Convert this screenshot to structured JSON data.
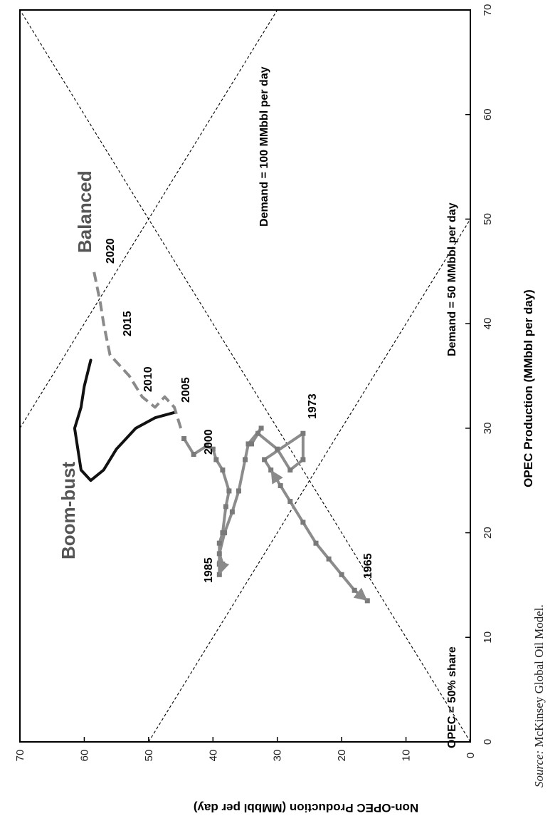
{
  "chart_data": {
    "type": "line",
    "xlabel": "OPEC Production (MMbbl per day)",
    "ylabel": "Non-OPEC Production (MMbbl per day)",
    "xlim": [
      0,
      70
    ],
    "ylim": [
      0,
      70
    ],
    "x_ticks": [
      "0",
      "10",
      "20",
      "30",
      "40",
      "50",
      "60",
      "70"
    ],
    "y_ticks": [
      "0",
      "10",
      "20",
      "30",
      "40",
      "50",
      "60",
      "70"
    ],
    "grid": false,
    "orientation": "rotated 90 degrees counter-clockwise",
    "reference_lines": [
      {
        "label": "OPEC = 50% share",
        "points": [
          [
            0,
            0
          ],
          [
            70,
            70
          ]
        ]
      },
      {
        "label": "Demand = 50 MMbbl per day",
        "points": [
          [
            0,
            50
          ],
          [
            50,
            0
          ]
        ]
      },
      {
        "label": "Demand = 100 MMbbl per day",
        "points": [
          [
            30,
            70
          ],
          [
            70,
            30
          ]
        ]
      }
    ],
    "series": [
      {
        "style": "grey solid with markers",
        "color": "#8c8c8c",
        "x": [
          13.5,
          14.5,
          16,
          17.5,
          19,
          21,
          23,
          24.5,
          26,
          27,
          29.5,
          27,
          26,
          28,
          29.5,
          28.5,
          30,
          28.5,
          27,
          24,
          22,
          20,
          18,
          17,
          16,
          17,
          19,
          20,
          22.5,
          24,
          26,
          27,
          28,
          28.3,
          27.5,
          29
        ],
        "y": [
          16,
          18,
          20,
          22,
          24,
          26,
          28,
          29.5,
          31,
          32,
          26,
          26,
          28,
          30,
          33,
          34,
          32.5,
          34.5,
          35,
          36,
          37,
          38.2,
          39,
          38.5,
          39,
          39,
          39,
          38.5,
          38,
          37.5,
          38.5,
          39.5,
          40,
          41,
          43,
          44.5
        ]
      },
      {
        "style": "black solid (boom-bust)",
        "color": "#111111",
        "x": [
          31.5,
          31,
          30,
          28,
          26,
          25,
          26,
          28,
          30,
          32,
          34,
          36.5
        ],
        "y": [
          46,
          49,
          52,
          55,
          57,
          59,
          60.5,
          61,
          61.5,
          60.5,
          60,
          59
        ]
      },
      {
        "style": "grey dashed (balanced)",
        "color": "#8a8a8a",
        "x": [
          30,
          32,
          33,
          32,
          33,
          35,
          36,
          37,
          40,
          42,
          45
        ],
        "y": [
          45,
          46,
          47.5,
          49,
          51,
          53,
          54.5,
          56,
          57,
          57.5,
          58.5
        ]
      }
    ],
    "point_labels": [
      "1965",
      "1973",
      "1985",
      "2000",
      "2005",
      "2010",
      "2015",
      "2020"
    ],
    "annotations": [
      "Boom-bust",
      "Balanced"
    ]
  },
  "source": {
    "prefix": "Source:",
    "text": " McKinsey Global Oil Model."
  }
}
